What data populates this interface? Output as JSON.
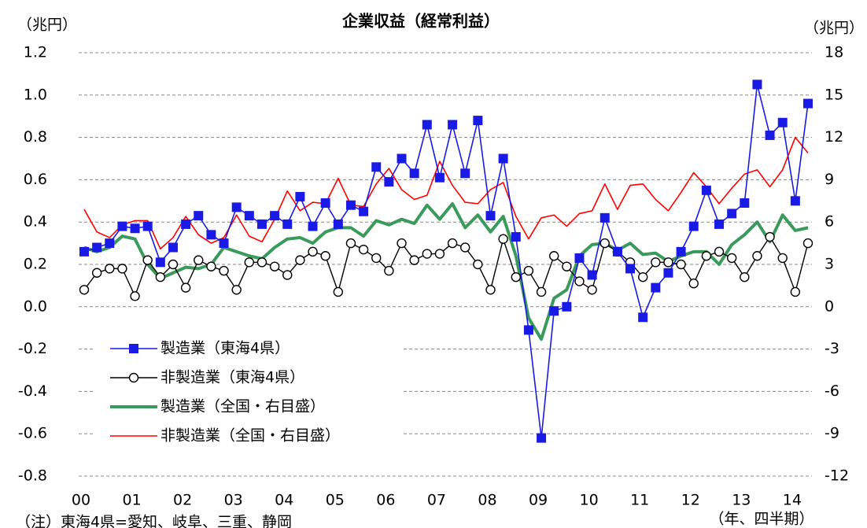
{
  "chart_data": {
    "type": "line",
    "title": "企業収益（経常利益）",
    "y_unit": "（兆円）",
    "y2_unit": "（兆円）",
    "x_label": "（年、四半期）",
    "note": "（注）東海4県=愛知、岐阜、三重、静岡",
    "categories": [
      "00",
      null,
      null,
      null,
      "01",
      null,
      null,
      null,
      "02",
      null,
      null,
      null,
      "03",
      null,
      null,
      null,
      "04",
      null,
      null,
      null,
      "05",
      null,
      null,
      null,
      "06",
      null,
      null,
      null,
      "07",
      null,
      null,
      null,
      "08",
      null,
      null,
      null,
      "09",
      null,
      null,
      null,
      "10",
      null,
      null,
      null,
      "11",
      null,
      null,
      null,
      "12",
      null,
      null,
      null,
      "13",
      null,
      null,
      null,
      "14",
      null
    ],
    "ylim": [
      -0.8,
      1.2
    ],
    "yticks": [
      {
        "value": 1.2,
        "label": "1.2"
      },
      {
        "value": 1.0,
        "label": "1.0"
      },
      {
        "value": 0.8,
        "label": "0.8"
      },
      {
        "value": 0.6,
        "label": "0.6"
      },
      {
        "value": 0.4,
        "label": "0.4"
      },
      {
        "value": 0.2,
        "label": "0.2"
      },
      {
        "value": 0,
        "label": "0.0"
      },
      {
        "value": -0.2,
        "label": "-0.2"
      },
      {
        "value": -0.4,
        "label": "-0.4"
      },
      {
        "value": -0.6,
        "label": "-0.6"
      },
      {
        "value": -0.8,
        "label": "-0.8"
      }
    ],
    "y2lim": [
      -12,
      18
    ],
    "y2ticks": [
      18,
      15,
      12,
      9,
      6,
      3,
      0,
      -3,
      -6,
      -9,
      -12
    ],
    "grid": true,
    "legend": "lower-left",
    "series": [
      {
        "name": "非製造業（全国・右目盛）",
        "color": "#ff0000",
        "axis": "y2",
        "line_width": 1.6,
        "marker": null,
        "values": [
          6.9,
          5.3,
          4.9,
          5.8,
          6.1,
          6.1,
          4.1,
          4.9,
          6.4,
          5.1,
          4.5,
          4.9,
          6.5,
          5.0,
          4.6,
          6.2,
          8.2,
          6.8,
          7.4,
          7.3,
          9.1,
          7.2,
          7.1,
          8.7,
          9.8,
          8.3,
          7.6,
          7.9,
          10.3,
          8.6,
          7.4,
          7.3,
          8.3,
          8.8,
          6.4,
          4.8,
          6.3,
          6.5,
          5.7,
          6.6,
          6.8,
          8.7,
          6.9,
          8.6,
          8.7,
          7.6,
          6.8,
          8.1,
          9.5,
          8.5,
          7.3,
          8.4,
          9.4,
          9.7,
          8.5,
          9.7,
          12.0,
          10.9
        ]
      },
      {
        "name": "製造業（全国・右目盛）",
        "color": "#3a9a5c",
        "axis": "y2",
        "line_width": 4,
        "marker": null,
        "values": [
          4.2,
          3.9,
          4.2,
          5.0,
          4.8,
          3.0,
          2.0,
          2.4,
          2.8,
          2.7,
          3.0,
          4.2,
          3.9,
          3.6,
          3.4,
          4.2,
          4.8,
          4.9,
          4.5,
          5.3,
          5.6,
          5.6,
          5.0,
          6.1,
          5.8,
          6.2,
          5.9,
          7.2,
          6.2,
          7.3,
          5.6,
          6.5,
          5.3,
          6.4,
          3.6,
          -0.8,
          -2.3,
          0.6,
          1.2,
          3.6,
          4.4,
          4.5,
          4.0,
          4.5,
          3.7,
          3.8,
          3.2,
          3.6,
          3.9,
          3.9,
          3.0,
          4.4,
          5.1,
          6.0,
          4.6,
          6.5,
          5.4,
          5.6
        ]
      },
      {
        "name": "非製造業（東海4県）",
        "color": "#000000",
        "axis": "y",
        "line_width": 1.4,
        "marker": "circle",
        "values": [
          0.08,
          0.16,
          0.18,
          0.18,
          0.05,
          0.22,
          0.14,
          0.2,
          0.09,
          0.22,
          0.19,
          0.17,
          0.08,
          0.21,
          0.21,
          0.19,
          0.15,
          0.22,
          0.26,
          0.24,
          0.07,
          0.3,
          0.27,
          0.23,
          0.17,
          0.3,
          0.22,
          0.25,
          0.25,
          0.3,
          0.28,
          0.2,
          0.08,
          0.32,
          0.14,
          0.17,
          0.07,
          0.24,
          0.19,
          0.12,
          0.08,
          0.3,
          0.26,
          0.21,
          0.14,
          0.21,
          0.21,
          0.2,
          0.11,
          0.24,
          0.26,
          0.23,
          0.14,
          0.24,
          0.33,
          0.23,
          0.07,
          0.3
        ]
      },
      {
        "name": "製造業（東海4県）",
        "color": "#1a1ae6",
        "axis": "y",
        "line_width": 1.6,
        "marker": "square",
        "values": [
          0.26,
          0.28,
          0.3,
          0.38,
          0.37,
          0.38,
          0.21,
          0.28,
          0.39,
          0.43,
          0.34,
          0.3,
          0.47,
          0.43,
          0.39,
          0.43,
          0.39,
          0.52,
          0.38,
          0.49,
          0.39,
          0.48,
          0.45,
          0.66,
          0.59,
          0.7,
          0.63,
          0.86,
          0.61,
          0.86,
          0.63,
          0.88,
          0.43,
          0.7,
          0.33,
          -0.11,
          -0.62,
          -0.02,
          0.0,
          0.23,
          0.15,
          0.42,
          0.26,
          0.18,
          -0.05,
          0.09,
          0.16,
          0.26,
          0.38,
          0.55,
          0.39,
          0.44,
          0.49,
          1.05,
          0.81,
          0.87,
          0.5,
          0.96
        ]
      }
    ]
  }
}
